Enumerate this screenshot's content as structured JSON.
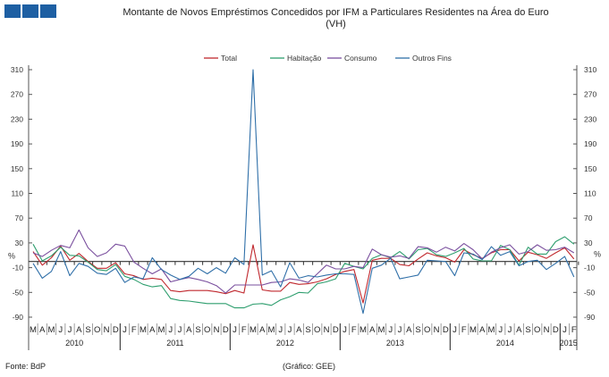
{
  "header": {
    "title": "Montante de Novos Empréstimos Concedidos por IFM a Particulares Residentes na Área do Euro",
    "subtitle": "(VH)",
    "logo_icon": "bank-logo-three-blue-squares"
  },
  "footer": {
    "source": "Fonte:  BdP",
    "credit": "(Gráfico:  GEE)"
  },
  "chart_data": {
    "type": "line",
    "title": "Montante de Novos Empréstimos Concedidos por IFM a Particulares Residentes na Área do Euro",
    "subtitle": "(VH)",
    "ylabel_left": "%",
    "ylabel_right": "%",
    "ylim": [
      -90,
      310
    ],
    "yticks": [
      310,
      270,
      230,
      190,
      150,
      110,
      70,
      30,
      -10,
      -50,
      -90
    ],
    "legend_position": "top",
    "grid": false,
    "months": [
      "M",
      "A",
      "M",
      "J",
      "J",
      "A",
      "S",
      "O",
      "N",
      "D",
      "J",
      "F",
      "M",
      "A",
      "M",
      "J",
      "J",
      "A",
      "S",
      "O",
      "N",
      "D",
      "J",
      "F",
      "M",
      "A",
      "M",
      "J",
      "J",
      "A",
      "S",
      "O",
      "N",
      "D",
      "J",
      "F",
      "M",
      "A",
      "M",
      "J",
      "J",
      "A",
      "S",
      "O",
      "N",
      "D",
      "J",
      "F",
      "M",
      "A",
      "M",
      "J",
      "J",
      "A",
      "S",
      "O",
      "N",
      "D",
      "J",
      "F"
    ],
    "years": [
      {
        "label": "2010",
        "months": 10
      },
      {
        "label": "2011",
        "months": 12
      },
      {
        "label": "2012",
        "months": 12
      },
      {
        "label": "2013",
        "months": 12
      },
      {
        "label": "2014",
        "months": 12
      },
      {
        "label": "2015",
        "months": 2
      }
    ],
    "x_range": [
      "2010-03",
      "2015-02"
    ],
    "series": [
      {
        "name": "Total",
        "color": "#c0282e",
        "values": [
          16,
          -6,
          6,
          25,
          2,
          13,
          0,
          -11,
          -11,
          -2,
          -20,
          -23,
          -29,
          -27,
          -29,
          -47,
          -49,
          -47,
          -47,
          -47,
          -49,
          -52,
          -47,
          -51,
          27,
          -46,
          -48,
          -48,
          -34,
          -37,
          -36,
          -33,
          -28,
          -21,
          -16,
          -13,
          -67,
          2,
          5,
          5,
          -5,
          -7,
          4,
          14,
          9,
          6,
          -1,
          19,
          11,
          5,
          14,
          19,
          19,
          1,
          15,
          11,
          5,
          14,
          22,
          4
        ]
      },
      {
        "name": "Habitação",
        "color": "#2e9e6e",
        "values": [
          28,
          1,
          9,
          23,
          10,
          9,
          -1,
          -13,
          -15,
          -5,
          -24,
          -29,
          -37,
          -41,
          -39,
          -60,
          -63,
          -64,
          -66,
          -68,
          -68,
          -68,
          -75,
          -75,
          -69,
          -68,
          -71,
          -62,
          -57,
          -50,
          -51,
          -36,
          -33,
          -28,
          -3,
          -8,
          -12,
          5,
          11,
          6,
          16,
          4,
          19,
          21,
          11,
          8,
          14,
          21,
          4,
          1,
          1,
          26,
          19,
          -6,
          23,
          12,
          12,
          32,
          40,
          28
        ]
      },
      {
        "name": "Consumo",
        "color": "#7a4f9e",
        "values": [
          14,
          8,
          18,
          26,
          22,
          51,
          22,
          8,
          14,
          28,
          25,
          -1,
          -11,
          -20,
          -12,
          -33,
          -29,
          -26,
          -29,
          -33,
          -39,
          -51,
          -38,
          -38,
          -38,
          -38,
          -34,
          -33,
          -28,
          -30,
          -34,
          -20,
          -6,
          -12,
          -12,
          -8,
          -10,
          20,
          11,
          7,
          9,
          5,
          24,
          22,
          15,
          23,
          17,
          29,
          19,
          4,
          15,
          22,
          27,
          12,
          16,
          27,
          18,
          19,
          23,
          14
        ]
      },
      {
        "name": "Outros Fins",
        "color": "#2f6fa8",
        "values": [
          -3,
          -27,
          -16,
          16,
          -23,
          -3,
          -8,
          -19,
          -21,
          -11,
          -34,
          -25,
          -28,
          6,
          -13,
          -22,
          -29,
          -24,
          -11,
          -20,
          -10,
          -19,
          6,
          -5,
          310,
          -22,
          -15,
          -41,
          -2,
          -27,
          -23,
          -25,
          -22,
          -20,
          -20,
          -21,
          -84,
          -11,
          -6,
          5,
          -28,
          -25,
          -22,
          2,
          1,
          0,
          -23,
          14,
          12,
          3,
          24,
          10,
          16,
          -7,
          0,
          2,
          -13,
          -3,
          8,
          -25
        ]
      }
    ]
  }
}
